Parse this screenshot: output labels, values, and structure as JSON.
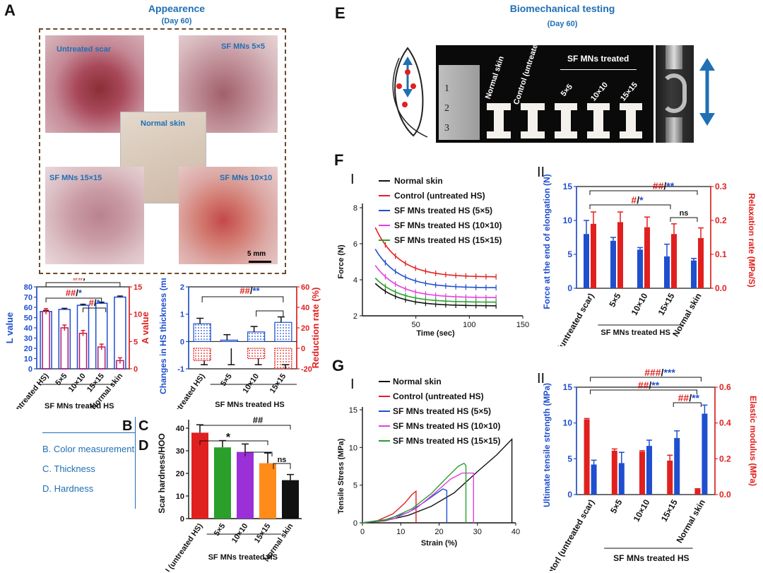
{
  "panelA": {
    "letter": "A",
    "title": "Appearence",
    "subtitle": "(Day 60)",
    "tiles": [
      {
        "label": "Untreated scar"
      },
      {
        "label": "SF MNs 5×5"
      },
      {
        "label": "Normal skin"
      },
      {
        "label": "SF MNs 15×15"
      },
      {
        "label": "SF MNs 10×10"
      }
    ],
    "scalebar": "5 mm"
  },
  "panelE": {
    "letter": "E",
    "title": "Biomechanical testing",
    "subtitle": "(Day 60)",
    "labels": [
      "Normal skin",
      "Control (untreated HS)",
      "SF MNs treated",
      "5×5",
      "10×10",
      "15×15"
    ]
  },
  "sideLegend": {
    "letters": [
      "B",
      "C",
      "D"
    ],
    "items": [
      "B. Color measurement",
      "C. Thickness",
      "D. Hardness"
    ]
  },
  "colors": {
    "blue": "#1f4fcf",
    "red": "#e0201f",
    "magenta": "#e040e0",
    "green": "#2aa02a",
    "black": "#111111",
    "purple": "#9b30d9",
    "orange": "#ff8c1a",
    "headBlue": "#1f6fb5"
  },
  "chart_data": [
    {
      "id": "B",
      "type": "bar",
      "categories": [
        "Control (untreated HS)",
        "5×5",
        "10×10",
        "15×15",
        "Normal skin"
      ],
      "group_label": "SF MNs treated HS",
      "series": [
        {
          "name": "L value",
          "axis": "left",
          "values": [
            56,
            58,
            62,
            64,
            70
          ]
        },
        {
          "name": "A value",
          "axis": "right",
          "values": [
            10.5,
            7.5,
            6.5,
            4,
            1.5
          ]
        }
      ],
      "ylabel_left": "L value",
      "ylim_left": [
        0,
        80
      ],
      "yticks_left": [
        0,
        10,
        20,
        30,
        40,
        50,
        60,
        70,
        80
      ],
      "ylabel_right": "A value",
      "ylim_right": [
        0,
        15
      ],
      "yticks_right": [
        0,
        5,
        10,
        15
      ],
      "annotations": [
        "##/**",
        "##/*",
        "#/*"
      ]
    },
    {
      "id": "C",
      "type": "bar",
      "categories": [
        "Control (untreated HS)",
        "5×5",
        "10×10",
        "15×15"
      ],
      "group_label": "SF MNs treated HS",
      "series": [
        {
          "name": "Changes in HS thickness",
          "axis": "left",
          "values": [
            0.65,
            0.05,
            0.35,
            0.7
          ]
        },
        {
          "name": "Reduction rate",
          "axis": "right",
          "values": [
            -12,
            0,
            -10,
            -20
          ]
        }
      ],
      "ylabel_left": "Changes in HS thickness (mm)",
      "ylim_left": [
        -1,
        2
      ],
      "yticks_left": [
        -1,
        0,
        1,
        2
      ],
      "ylabel_right": "Reduction rate (%)",
      "ylim_right": [
        -20,
        60
      ],
      "yticks_right": [
        -20,
        0,
        20,
        40,
        60
      ],
      "annotations": [
        "##/**"
      ]
    },
    {
      "id": "D",
      "type": "bar",
      "categories": [
        "Control (untreated HS)",
        "5×5",
        "10×10",
        "15×15",
        "Normal skin"
      ],
      "group_label": "SF MNs treated HS",
      "values": [
        38,
        31.5,
        29.5,
        24.5,
        17
      ],
      "errors": [
        3.5,
        3,
        3.5,
        4.5,
        2.5
      ],
      "ylabel": "Scar hardness/HOO",
      "ylim": [
        0,
        40
      ],
      "yticks": [
        0,
        10,
        20,
        30,
        40
      ],
      "annotations": [
        "##",
        "*",
        "ns"
      ]
    },
    {
      "id": "F-I",
      "type": "line",
      "xlabel": "Time (sec)",
      "ylabel": "Force (N)",
      "xlim": [
        0,
        150
      ],
      "ylim": [
        2,
        8
      ],
      "xticks": [
        50,
        100,
        150
      ],
      "yticks": [
        2,
        4,
        6,
        8
      ],
      "roman": "I",
      "series": [
        {
          "name": "Normal skin",
          "start": 3.8,
          "end": 2.55
        },
        {
          "name": "Control (untreated HS)",
          "start": 6.9,
          "end": 4.15
        },
        {
          "name": "SF MNs treated HS (5×5)",
          "start": 5.7,
          "end": 3.55
        },
        {
          "name": "SF MNs treated HS (10×10)",
          "start": 4.8,
          "end": 3.0
        },
        {
          "name": "SF MNs treated HS (15×15)",
          "start": 4.1,
          "end": 2.75
        }
      ]
    },
    {
      "id": "F-II",
      "type": "bar",
      "roman": "II",
      "categories": [
        "Contorl (untreated scar)",
        "5×5",
        "10×10",
        "15×15",
        "Normal skin"
      ],
      "group_label": "SF MNs treated HS",
      "series": [
        {
          "name": "Force at the end of elongation",
          "axis": "left",
          "values": [
            8,
            7,
            5.7,
            4.7,
            4.1
          ],
          "errors": [
            2,
            0.5,
            0.3,
            1.8,
            0.3
          ]
        },
        {
          "name": "Relaxation rate",
          "axis": "right",
          "values": [
            0.19,
            0.195,
            0.18,
            0.16,
            0.148
          ],
          "errors": [
            0.035,
            0.03,
            0.03,
            0.03,
            0.03
          ]
        }
      ],
      "ylabel_left": "Force at the end of elongation (N)",
      "ylim_left": [
        0,
        15
      ],
      "yticks_left": [
        0,
        5,
        10,
        15
      ],
      "ylabel_right": "Relaxation rate (MPa/S)",
      "ylim_right": [
        0,
        0.3
      ],
      "yticks_right": [
        0.0,
        0.1,
        0.2,
        0.3
      ],
      "annotations": [
        "##/**",
        "#/*",
        "ns"
      ]
    },
    {
      "id": "G-I",
      "type": "line",
      "roman": "I",
      "xlabel": "Strain (%)",
      "ylabel": "Tensile Stress (MPa)",
      "xlim": [
        0,
        40
      ],
      "ylim": [
        0,
        15
      ],
      "xticks": [
        0,
        10,
        20,
        30,
        40
      ],
      "yticks": [
        0,
        5,
        10,
        15
      ],
      "series": [
        {
          "name": "Normal skin",
          "points": [
            [
              0,
              0
            ],
            [
              6,
              0.3
            ],
            [
              12,
              1
            ],
            [
              18,
              2.2
            ],
            [
              24,
              4
            ],
            [
              30,
              6.8
            ],
            [
              35,
              9
            ],
            [
              39,
              11.1
            ],
            [
              39,
              0
            ]
          ]
        },
        {
          "name": "Control (untreated HS)",
          "points": [
            [
              0,
              0
            ],
            [
              4,
              0.3
            ],
            [
              8,
              1.2
            ],
            [
              11,
              2.6
            ],
            [
              13,
              3.8
            ],
            [
              14,
              4.2
            ],
            [
              14,
              0
            ]
          ]
        },
        {
          "name": "SF MNs treated HS (5×5)",
          "points": [
            [
              0,
              0
            ],
            [
              6,
              0.4
            ],
            [
              12,
              1.4
            ],
            [
              16,
              2.7
            ],
            [
              19,
              3.8
            ],
            [
              21,
              4.5
            ],
            [
              22,
              4.3
            ],
            [
              22,
              0
            ]
          ]
        },
        {
          "name": "SF MNs treated HS (10×10)",
          "points": [
            [
              0,
              0
            ],
            [
              8,
              0.5
            ],
            [
              14,
              1.9
            ],
            [
              19,
              4
            ],
            [
              23,
              5.8
            ],
            [
              26,
              6.6
            ],
            [
              29,
              6.6
            ],
            [
              29,
              0
            ]
          ]
        },
        {
          "name": "SF MNs treated HS (15×15)",
          "points": [
            [
              0,
              0
            ],
            [
              7,
              0.5
            ],
            [
              13,
              1.9
            ],
            [
              18,
              3.9
            ],
            [
              22,
              6
            ],
            [
              25,
              7.5
            ],
            [
              26.5,
              7.9
            ],
            [
              27,
              7.6
            ],
            [
              27,
              0
            ]
          ]
        }
      ]
    },
    {
      "id": "G-II",
      "type": "bar",
      "roman": "II",
      "categories": [
        "Contorl (untreated scar)",
        "5×5",
        "10×10",
        "15×15",
        "Normal skin"
      ],
      "group_label": "SF MNs treated HS",
      "series": [
        {
          "name": "Ultimate tensile strength",
          "axis": "left",
          "values": [
            4.2,
            4.4,
            6.8,
            7.9,
            11.3
          ],
          "errors": [
            0.6,
            1.5,
            0.8,
            1,
            1.2
          ]
        },
        {
          "name": "Elastic modulus",
          "axis": "right",
          "values": [
            0.42,
            0.245,
            0.24,
            0.19,
            0.03
          ],
          "errors": [
            0.005,
            0.01,
            0.005,
            0.03,
            0.003
          ]
        }
      ],
      "ylabel_left": "Ultimate tensile strength (MPa)",
      "ylim_left": [
        0,
        15
      ],
      "yticks_left": [
        0,
        5,
        10,
        15
      ],
      "ylabel_right": "Elastic modulus (MPa)",
      "ylim_right": [
        0,
        0.6
      ],
      "yticks_right": [
        0.0,
        0.2,
        0.4,
        0.6
      ],
      "annotations": [
        "###/***",
        "##/**",
        "##/**"
      ]
    }
  ]
}
